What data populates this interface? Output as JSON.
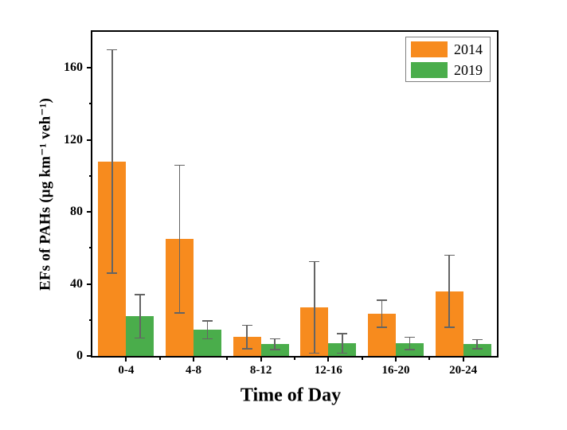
{
  "chart_data": {
    "type": "bar",
    "title": "",
    "xlabel": "Time of Day",
    "ylabel": "EFs of PAHs (μg km⁻¹ veh⁻¹)",
    "categories": [
      "0-4",
      "4-8",
      "8-12",
      "12-16",
      "16-20",
      "20-24"
    ],
    "series": [
      {
        "name": "2014",
        "color": "#F78B1E",
        "values": [
          108,
          65,
          10.5,
          27,
          23.5,
          36
        ],
        "errors": [
          62,
          41,
          6.5,
          25.5,
          7.5,
          20
        ]
      },
      {
        "name": "2019",
        "color": "#4AAD4B",
        "values": [
          22,
          14.5,
          6.5,
          7,
          7,
          6.5
        ],
        "errors": [
          12,
          5,
          3,
          5.5,
          3.5,
          2.5
        ]
      }
    ],
    "ylim": [
      0,
      180
    ],
    "y_major_ticks": [
      0,
      40,
      80,
      120,
      160
    ],
    "y_minor_ticks": [
      20,
      60,
      100,
      140
    ],
    "grid": false,
    "legend_position": "top-right-inside",
    "error_bar_color": "#646464"
  },
  "legend": {
    "items": [
      {
        "label": "2014",
        "color": "#F78B1E"
      },
      {
        "label": "2019",
        "color": "#4AAD4B"
      }
    ]
  }
}
